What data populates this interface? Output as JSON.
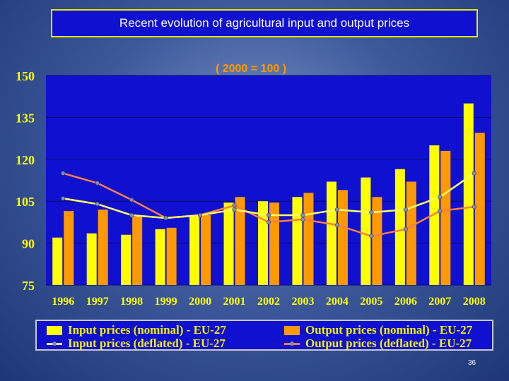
{
  "slide": {
    "title": "Recent evolution of agricultural input and output prices",
    "page_number": "36"
  },
  "colors": {
    "plot_background": "#1010d0",
    "input_nominal": "#ffff00",
    "output_nominal": "#ff9900",
    "input_deflated_line": "#ffff66",
    "output_deflated_line": "#ff7f3f",
    "axis_text": "#ffff00",
    "subtitle_text": "#ff9900"
  },
  "chart_data": {
    "type": "bar",
    "subtitle": "( 2000 = 100 )",
    "categories": [
      "1996",
      "1997",
      "1998",
      "1999",
      "2000",
      "2001",
      "2002",
      "2003",
      "2004",
      "2005",
      "2006",
      "2007",
      "2008"
    ],
    "ylim": [
      75,
      150
    ],
    "yticks": [
      150,
      135,
      120,
      105,
      90,
      75
    ],
    "grid": true,
    "legend_position": "bottom",
    "series": [
      {
        "name": "Input prices (nominal) - EU-27",
        "kind": "bar",
        "values": [
          92,
          93.5,
          93,
          95,
          100,
          104.5,
          105,
          106.5,
          112,
          113.5,
          116.5,
          125,
          140
        ]
      },
      {
        "name": "Output prices (nominal) - EU-27",
        "kind": "bar",
        "values": [
          101.5,
          102,
          99.5,
          95.5,
          100,
          106.5,
          104.5,
          108,
          109,
          106.5,
          112,
          123,
          129.5
        ]
      },
      {
        "name": "Input prices (deflated) - EU-27",
        "kind": "line",
        "values": [
          106,
          104,
          100,
          99,
          100,
          102,
          100,
          100,
          102,
          101,
          102,
          106.5,
          115
        ]
      },
      {
        "name": "Output prices (deflated) - EU-27",
        "kind": "line",
        "values": [
          115,
          111.5,
          105.5,
          99,
          100,
          103.5,
          97.5,
          98.5,
          96.5,
          92.5,
          95,
          101.5,
          103
        ]
      }
    ]
  }
}
